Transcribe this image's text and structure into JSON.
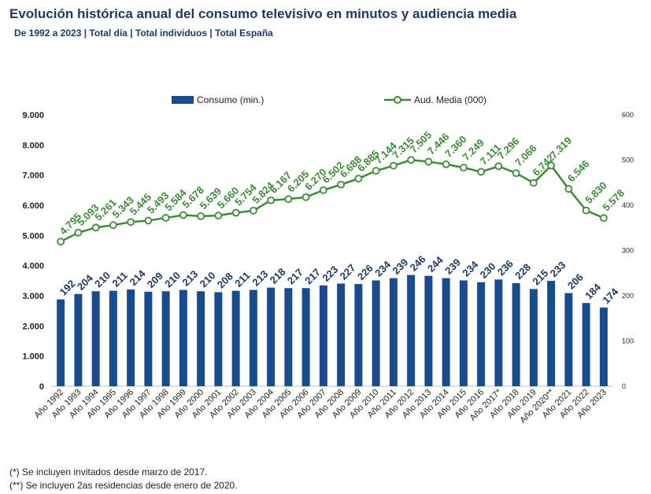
{
  "title": "Evolución histórica anual del consumo televisivo en minutos y audiencia media",
  "subtitle": "De 1992 a 2023 | Total día | Total individuos | Total España",
  "footnotes": [
    "(*) Se incluyen invitados desde marzo de 2017.",
    "(**) Se incluyen 2as residencias desde enero de 2020."
  ],
  "colors": {
    "bar": "#1a4b8c",
    "line": "#3d8b37",
    "bar_label": "#1f3864",
    "line_label": "#3d8b37",
    "axis_text": "#1f1f1f",
    "grid": "#d9d9d9"
  },
  "chart_data": {
    "type": "bar",
    "categories": [
      "Año 1992",
      "Año 1993",
      "Año 1994",
      "Año 1995",
      "Año 1996",
      "Año 1997",
      "Año 1998",
      "Año 1999",
      "Año 2000",
      "Año 2001",
      "Año 2002",
      "Año 2003",
      "Año 2004",
      "Año 2005",
      "Año 2006",
      "Año 2007",
      "Año 2008",
      "Año 2009",
      "Año 2010",
      "Año 2011",
      "Año 2012",
      "Año 2013",
      "Año 2014",
      "Año 2015",
      "Año 2016",
      "Año 2017*",
      "Año 2018",
      "Año 2019",
      "Año 2020**",
      "Año 2021",
      "Año 2022",
      "Año 2023"
    ],
    "series": [
      {
        "name": "Consumo (min.)",
        "type": "bar",
        "axis": "right",
        "values": [
          192,
          204,
          210,
          211,
          214,
          209,
          210,
          213,
          210,
          208,
          211,
          213,
          218,
          217,
          217,
          223,
          227,
          226,
          234,
          239,
          246,
          244,
          239,
          234,
          230,
          236,
          228,
          215,
          233,
          206,
          184,
          174
        ],
        "labels": [
          "192",
          "204",
          "210",
          "211",
          "214",
          "209",
          "210",
          "213",
          "210",
          "208",
          "211",
          "213",
          "218",
          "217",
          "217",
          "223",
          "227",
          "226",
          "234",
          "239",
          "246",
          "244",
          "239",
          "234",
          "230",
          "236",
          "228",
          "215",
          "233",
          "206",
          "184",
          "174"
        ]
      },
      {
        "name": "Aud. Media (000)",
        "type": "line",
        "axis": "left",
        "values": [
          4795,
          5093,
          5261,
          5343,
          5445,
          5493,
          5584,
          5678,
          5639,
          5660,
          5754,
          5824,
          6167,
          6205,
          6270,
          6502,
          6688,
          6885,
          7144,
          7315,
          7505,
          7446,
          7360,
          7249,
          7111,
          7296,
          7066,
          6742,
          7319,
          6546,
          5830,
          5578
        ],
        "labels": [
          "4.795",
          "5.093",
          "5.261",
          "5.343",
          "5.445",
          "5.493",
          "5.584",
          "5.678",
          "5.639",
          "5.660",
          "5.754",
          "5.824",
          "6.167",
          "6.205",
          "6.270",
          "6.502",
          "6.688",
          "6.885",
          "7.144",
          "7.315",
          "7.505",
          "7.446",
          "7.360",
          "7.249",
          "7.111",
          "7.296",
          "7.066",
          "6.742",
          "7.319",
          "6.546",
          "5.830",
          "5.578"
        ]
      }
    ],
    "y_left": {
      "min": 0,
      "max": 9000,
      "ticks": [
        "0",
        "1.000",
        "2.000",
        "3.000",
        "4.000",
        "5.000",
        "6.000",
        "7.000",
        "8.000",
        "9.000"
      ]
    },
    "y_right": {
      "min": 0,
      "max": 600,
      "ticks": [
        "0",
        "100",
        "200",
        "300",
        "400",
        "500",
        "600"
      ]
    },
    "grid": false,
    "legend_position": "top"
  }
}
